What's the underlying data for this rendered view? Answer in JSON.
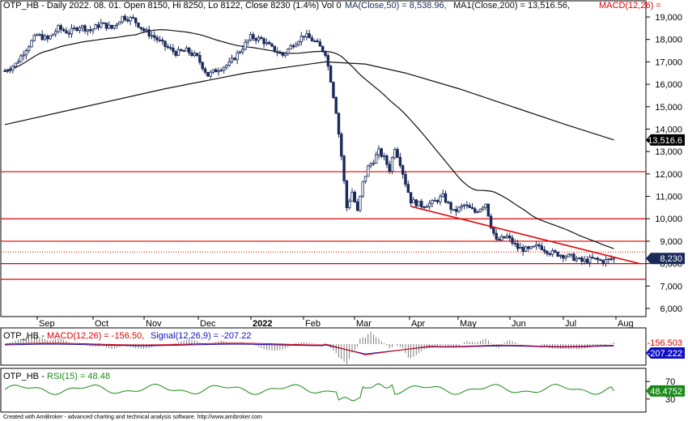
{
  "header": {
    "main": "OTP_HB - Daily 2022. 08. 01. Open 8150, Hi 8250, Lo 8122, Close 8230 (1.4%) Vol 0",
    "ma50": "MA(Close,50) = 8,538.96,",
    "ma200": "MA1(Close,200) = 13,516.56,",
    "macd": "MACD(12,26) ="
  },
  "macd_header": {
    "prefix": "OTP_HB -",
    "macd": "MACD(12,26) = -156.50,",
    "signal": "Signal(12,26,9) = -207.22"
  },
  "rsi_header": {
    "prefix": "OTP_HB -",
    "rsi": "RSI(15) = 48.48"
  },
  "footer": "Created with AmiBroker - advanced charting and technical analysis software. http://www.amibroker.com",
  "colors": {
    "price": "#1a2a5a",
    "ma": "#111111",
    "hline": "#e00000",
    "trend": "#e00000",
    "macd": "#e00000",
    "signal": "#1010c0",
    "rsi": "#1a8a1a",
    "hist": "#444444",
    "axis": "#000000"
  },
  "chart_data": [
    {
      "type": "candlestick",
      "title": "OTP_HB - Daily 2022. 08. 01. Open 8150, Hi 8250, Lo 8122, Close 8230 (1.4%) Vol 0",
      "x_labels": [
        "Sep",
        "Oct",
        "Nov",
        "Dec",
        "2022",
        "Feb",
        "Mar",
        "Apr",
        "May",
        "Jun",
        "Jul",
        "Aug"
      ],
      "y_ticks": [
        6000,
        7000,
        8000,
        9000,
        10000,
        11000,
        12000,
        13000,
        14000,
        15000,
        16000,
        17000,
        18000,
        19000
      ],
      "y_tick_labels": [
        "6,000",
        "7,000",
        "8,000",
        "9,000",
        "10,000",
        "11,000",
        "12,000",
        "13,000",
        "14,000",
        "15,000",
        "16,000",
        "17,000",
        "18,000",
        "19,000"
      ],
      "ylim": [
        5300,
        19700
      ],
      "series": [
        {
          "name": "Close (approx.)",
          "points": [
            [
              0,
              16600
            ],
            [
              4,
              16900
            ],
            [
              8,
              17600
            ],
            [
              12,
              18200
            ],
            [
              16,
              18000
            ],
            [
              20,
              18500
            ],
            [
              24,
              18300
            ],
            [
              28,
              18600
            ],
            [
              32,
              18400
            ],
            [
              36,
              18700
            ],
            [
              40,
              18500
            ],
            [
              44,
              19000
            ],
            [
              48,
              18900
            ],
            [
              52,
              18400
            ],
            [
              56,
              18100
            ],
            [
              60,
              17700
            ],
            [
              64,
              17400
            ],
            [
              68,
              17500
            ],
            [
              72,
              17200
            ],
            [
              76,
              16400
            ],
            [
              80,
              16700
            ],
            [
              84,
              16900
            ],
            [
              88,
              17500
            ],
            [
              92,
              18100
            ],
            [
              96,
              18000
            ],
            [
              100,
              17600
            ],
            [
              104,
              17300
            ],
            [
              108,
              17800
            ],
            [
              112,
              18200
            ],
            [
              116,
              17900
            ],
            [
              120,
              17400
            ],
            [
              122,
              16200
            ],
            [
              124,
              14800
            ],
            [
              126,
              12800
            ],
            [
              128,
              10500
            ],
            [
              130,
              11200
            ],
            [
              132,
              10300
            ],
            [
              134,
              11600
            ],
            [
              136,
              12300
            ],
            [
              138,
              12600
            ],
            [
              140,
              13000
            ],
            [
              142,
              12700
            ],
            [
              144,
              12200
            ],
            [
              146,
              13200
            ],
            [
              148,
              12500
            ],
            [
              150,
              11600
            ],
            [
              152,
              10800
            ],
            [
              156,
              10600
            ],
            [
              160,
              10700
            ],
            [
              164,
              11000
            ],
            [
              168,
              10300
            ],
            [
              172,
              10600
            ],
            [
              176,
              10300
            ],
            [
              180,
              10700
            ],
            [
              182,
              9700
            ],
            [
              184,
              9000
            ],
            [
              188,
              9200
            ],
            [
              192,
              8700
            ],
            [
              196,
              8600
            ],
            [
              200,
              8800
            ],
            [
              204,
              8500
            ],
            [
              208,
              8400
            ],
            [
              212,
              8300
            ],
            [
              216,
              8100
            ],
            [
              220,
              8200
            ],
            [
              224,
              8100
            ],
            [
              228,
              8230
            ]
          ]
        },
        {
          "name": "MA(Close,50)",
          "value_last": 8538.96
        },
        {
          "name": "MA1(Close,200)",
          "value_last": 13516.56
        }
      ],
      "horizontal_lines": [
        12100,
        10000,
        9000,
        8520,
        8000,
        7300
      ],
      "trend_line": {
        "from": [
          152,
          10550
        ],
        "to": [
          238,
          7990
        ]
      },
      "price_label": "8,230",
      "ma200_label": "13,516.6"
    },
    {
      "type": "line",
      "title": "MACD(12,26) = -156.50, Signal(12,26,9) = -207.22",
      "series": [
        {
          "name": "MACD(12,26)",
          "value_last": -156.5
        },
        {
          "name": "Signal(12,26,9)",
          "value_last": -207.22
        }
      ],
      "value_labels": [
        "-156.503",
        "-207.222"
      ]
    },
    {
      "type": "line",
      "title": "RSI(15) = 48.48",
      "y_ticks": [
        30,
        70
      ],
      "series": [
        {
          "name": "RSI(15)",
          "value_last": 48.48
        }
      ],
      "value_label": "48.4752"
    }
  ]
}
